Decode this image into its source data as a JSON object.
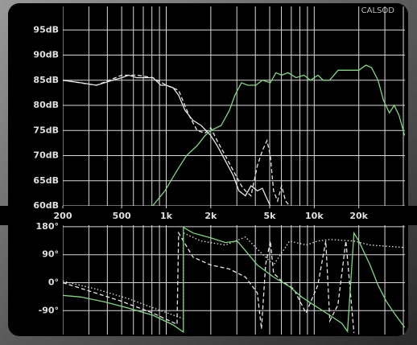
{
  "chart_data": [
    {
      "type": "line",
      "annotation": "CALSOD",
      "log_x": true,
      "grid": true,
      "xlim": [
        200,
        41000
      ],
      "ylim": [
        60,
        100
      ],
      "xticks": [
        200,
        500,
        {
          "value": 1000,
          "label": "1k"
        },
        {
          "value": 2000,
          "label": "2k"
        },
        {
          "value": 5000,
          "label": "5k"
        },
        {
          "value": 10000,
          "label": "10k"
        },
        {
          "value": 20000,
          "label": "20k"
        }
      ],
      "xgrid": [
        200,
        300,
        400,
        500,
        600,
        700,
        800,
        900,
        1000,
        2000,
        3000,
        4000,
        5000,
        6000,
        7000,
        8000,
        9000,
        10000,
        20000,
        30000,
        40000
      ],
      "yticks": [
        {
          "value": 60,
          "label": "60dB"
        },
        {
          "value": 65,
          "label": "65dB"
        },
        {
          "value": 70,
          "label": "70dB"
        },
        {
          "value": 75,
          "label": "75dB"
        },
        {
          "value": 80,
          "label": "80dB"
        },
        {
          "value": 85,
          "label": "85dB"
        },
        {
          "value": 90,
          "label": "90dB"
        },
        {
          "value": 95,
          "label": "95dB"
        }
      ],
      "series": [
        {
          "color": "#e6e6e6",
          "dash": "solid",
          "x": [
            200,
            264,
            338,
            435,
            500,
            558,
            632,
            716,
            813,
            921,
            1000,
            1112,
            1213,
            1340,
            1518,
            1722,
            2000,
            2208,
            2506,
            2840,
            3100,
            3430,
            3740,
            4130,
            4460,
            4690,
            5050
          ],
          "values": [
            85,
            84.5,
            84,
            85,
            85.5,
            86,
            85.5,
            85.5,
            85.5,
            84,
            84,
            83.5,
            82,
            79,
            77,
            76,
            74,
            72,
            69,
            66,
            63,
            62,
            64,
            63,
            63.5,
            62,
            60
          ]
        },
        {
          "color": "#e6e6e6",
          "dash": "dashed",
          "x": [
            200,
            338,
            500,
            632,
            813,
            1000,
            1213,
            1426,
            1617,
            1832,
            2000,
            2208,
            2506,
            2840,
            3220,
            3430,
            3740,
            4130,
            4460,
            4800,
            5050,
            5310,
            5650,
            6020,
            6400,
            6820
          ],
          "values": [
            85,
            84,
            86,
            86,
            85.5,
            84,
            83,
            78,
            75,
            74.5,
            75.5,
            73,
            70,
            67,
            64,
            63,
            62,
            68,
            71,
            73,
            70,
            63,
            61,
            64,
            61,
            60
          ]
        },
        {
          "color": "#80d880",
          "dash": "solid",
          "x": [
            810,
            980,
            1180,
            1370,
            1620,
            1830,
            2000,
            2350,
            2670,
            2910,
            3220,
            3560,
            4030,
            4460,
            5050,
            5510,
            6020,
            6650,
            7540,
            8530,
            9440,
            10600,
            11500,
            12700,
            14500,
            16400,
            20000,
            22400,
            24400,
            27000,
            29400,
            32200,
            34700,
            37400,
            40800
          ],
          "values": [
            60,
            63,
            67,
            70,
            72,
            74,
            75,
            76,
            79,
            82,
            84.5,
            84,
            84,
            85,
            84.5,
            86.5,
            86,
            86.5,
            85.5,
            86,
            85,
            86,
            85,
            85,
            87,
            87,
            87,
            88,
            87.5,
            85,
            81,
            78.5,
            80,
            78,
            74
          ]
        }
      ]
    },
    {
      "type": "line",
      "log_x": true,
      "grid": true,
      "xlim": [
        200,
        41000
      ],
      "ylim": [
        -167,
        185
      ],
      "xgrid": [
        200,
        300,
        400,
        500,
        600,
        700,
        800,
        900,
        1000,
        2000,
        3000,
        4000,
        5000,
        6000,
        7000,
        8000,
        9000,
        10000,
        20000,
        30000,
        40000
      ],
      "yticks": [
        {
          "value": -90,
          "label": "-90°"
        },
        {
          "value": 0,
          "label": "0°"
        },
        {
          "value": 90,
          "label": "90°"
        },
        {
          "value": 180,
          "label": "180°"
        }
      ],
      "series": [
        {
          "color": "#e6e6e6",
          "dash": "dotted",
          "x": [
            200,
            338,
            558,
            921,
            1306,
            1306,
            1722,
            2506,
            3430,
            4130,
            5310,
            6820,
            8800,
            10570,
            12740,
            18550,
            23830,
            40800
          ],
          "values": [
            5,
            -21,
            -52,
            -90,
            -116,
            160,
            134,
            121,
            147,
            108,
            57,
            134,
            121,
            134,
            139,
            134,
            121,
            113
          ]
        },
        {
          "color": "#e6e6e6",
          "dash": "dashed",
          "x": [
            200,
            298,
            492,
            813,
            1183,
            1213,
            1518,
            2000,
            2667,
            3430,
            4130,
            4400,
            4690,
            5050,
            5310,
            6020,
            7260,
            8800,
            10570,
            11970,
            12740,
            14450,
            16370,
            18550
          ],
          "values": [
            0,
            -26,
            -59,
            -98,
            -134,
            160,
            82,
            57,
            44,
            18,
            -33,
            -149,
            57,
            134,
            31,
            5,
            -20,
            -98,
            -8,
            134,
            -123,
            -72,
            134,
            -162
          ]
        },
        {
          "color": "#80d880",
          "dash": "solid",
          "x": [
            200,
            264,
            383,
            558,
            813,
            1112,
            1306,
            1306,
            1518,
            2000,
            2506,
            3020,
            3430,
            4130,
            5310,
            6820,
            8230,
            9930,
            12740,
            15380,
            16780,
            18550,
            20000,
            23830,
            27000,
            30620,
            34680,
            40800
          ],
          "values": [
            -41,
            -46,
            -62,
            -82,
            -105,
            -136,
            -159,
            178,
            160,
            144,
            129,
            134,
            103,
            57,
            18,
            -13,
            -46,
            -72,
            -105,
            -131,
            -157,
            160,
            134,
            57,
            -8,
            -59,
            -98,
            -144
          ]
        }
      ]
    }
  ]
}
